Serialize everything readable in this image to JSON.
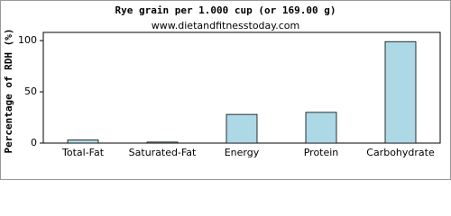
{
  "chart_data": {
    "type": "bar",
    "title": "Rye grain per 1.000 cup (or 169.00 g)",
    "subtitle": "www.dietandfitnesstoday.com",
    "ylabel": "Percentage of RDH (%)",
    "categories": [
      "Total-Fat",
      "Saturated-Fat",
      "Energy",
      "Protein",
      "Carbohydrate"
    ],
    "values": [
      3,
      1,
      28,
      30,
      99
    ],
    "color": "#add8e6",
    "ylim": [
      0,
      108
    ],
    "yticks": [
      0,
      50,
      100
    ],
    "grid": false
  }
}
